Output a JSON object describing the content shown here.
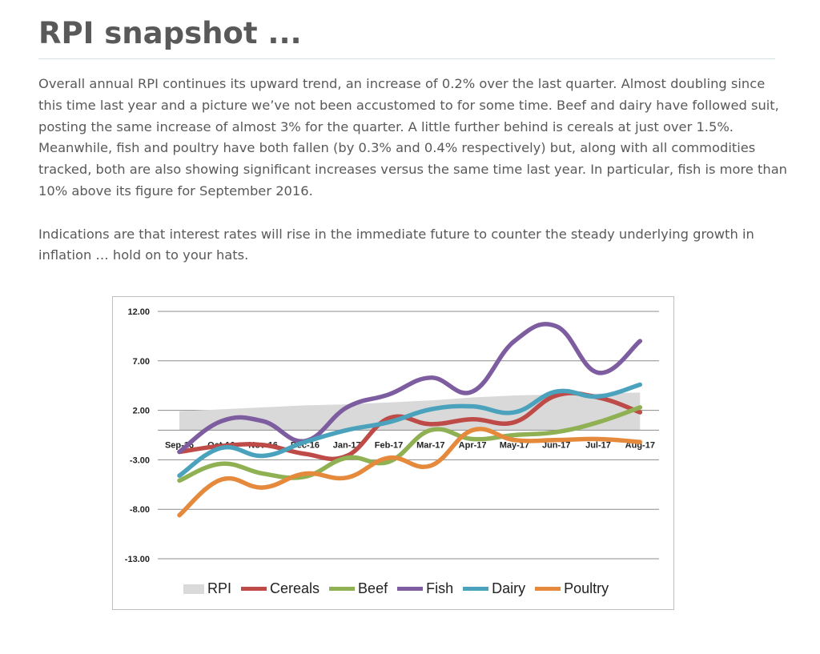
{
  "page": {
    "title": "RPI snapshot ...",
    "paragraphs": [
      "Overall annual RPI continues its upward trend, an increase of 0.2% over the last quarter.  Almost doubling since this time last year and a picture we’ve not been accustomed to for some time.  Beef and dairy have followed suit, posting the same increase of almost 3% for the quarter.  A little further behind is cereals at just over 1.5%.  Meanwhile, fish and poultry have both fallen (by 0.3% and 0.4% respectively) but, along with all commodities tracked, both are also showing significant increases versus the same time last year.  In particular, fish is more than 10% above its figure for September 2016.",
      "Indications are that interest rates will rise in the immediate future to counter the steady underlying growth in inflation … hold on to your hats."
    ]
  },
  "chart_data": {
    "type": "line",
    "title": "",
    "xlabel": "",
    "ylabel": "",
    "categories": [
      "Sep-16",
      "Oct-16",
      "Nov-16",
      "Dec-16",
      "Jan-17",
      "Feb-17",
      "Mar-17",
      "Apr-17",
      "May-17",
      "Jun-17",
      "Jul-17",
      "Aug-17"
    ],
    "yticks": [
      "12.00",
      "7.00",
      "2.00",
      "-3.00",
      "-8.00",
      "-13.00"
    ],
    "ylim": [
      -13,
      12
    ],
    "grid": true,
    "legend_position": "bottom",
    "series": [
      {
        "name": "RPI",
        "type": "area",
        "color": "#d9d9d9",
        "values": [
          1.9,
          2.1,
          2.3,
          2.5,
          2.6,
          2.8,
          3.0,
          3.3,
          3.5,
          3.6,
          3.7,
          3.8
        ]
      },
      {
        "name": "Cereals",
        "type": "line",
        "color": "#be4b48",
        "values": [
          -2.2,
          -1.6,
          -1.5,
          -2.4,
          -2.6,
          1.2,
          0.6,
          1.1,
          0.8,
          3.5,
          3.3,
          1.8
        ]
      },
      {
        "name": "Beef",
        "type": "line",
        "color": "#8fb154",
        "values": [
          -5.1,
          -3.4,
          -4.4,
          -4.7,
          -2.8,
          -3.2,
          0.0,
          -0.9,
          -0.5,
          -0.2,
          0.8,
          2.3
        ]
      },
      {
        "name": "Fish",
        "type": "line",
        "color": "#7d5da0",
        "values": [
          -2.2,
          0.9,
          0.9,
          -1.1,
          2.3,
          3.6,
          5.3,
          3.9,
          9.0,
          10.5,
          5.8,
          9.0
        ]
      },
      {
        "name": "Dairy",
        "type": "line",
        "color": "#4aa2bd",
        "values": [
          -4.6,
          -1.8,
          -2.6,
          -1.2,
          0.0,
          0.8,
          2.1,
          2.4,
          1.8,
          3.9,
          3.4,
          4.6
        ]
      },
      {
        "name": "Poultry",
        "type": "line",
        "color": "#e58a3d",
        "values": [
          -8.6,
          -5.0,
          -5.8,
          -4.4,
          -4.8,
          -2.8,
          -3.6,
          0.0,
          -1.0,
          -1.0,
          -0.9,
          -1.2
        ]
      }
    ]
  }
}
